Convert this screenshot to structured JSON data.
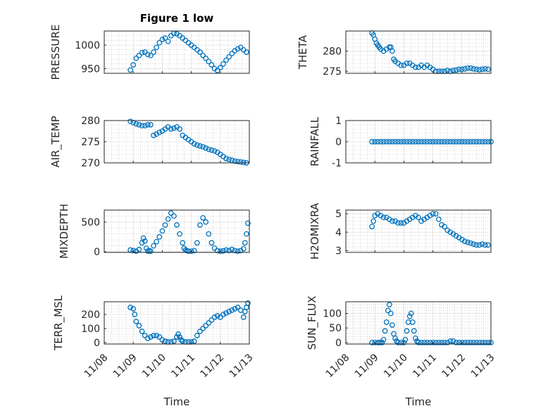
{
  "figure": {
    "title": "Figure 1 low"
  },
  "colors": {
    "marker": "#0072BD",
    "axes": "#262626",
    "grid": "#b8b8b8"
  },
  "chart_data": [
    {
      "type": "scatter",
      "title": "Figure 1 low",
      "xlabel": "",
      "ylabel": "PRESSURE",
      "xlim": [
        0,
        5
      ],
      "ylim": [
        940,
        1030
      ],
      "yticks": [
        950,
        1000
      ],
      "xticks": [],
      "series": [
        {
          "x": [
            0.9,
            1.0,
            1.1,
            1.2,
            1.3,
            1.4,
            1.5,
            1.6,
            1.7,
            1.8,
            1.9,
            2.0,
            2.1,
            2.2,
            2.3,
            2.4,
            2.5,
            2.6,
            2.7,
            2.8,
            2.9,
            3.0,
            3.1,
            3.2,
            3.3,
            3.4,
            3.5,
            3.6,
            3.7,
            3.8,
            3.9,
            4.0,
            4.1,
            4.2,
            4.3,
            4.4,
            4.5,
            4.6,
            4.7,
            4.8,
            4.9
          ],
          "y": [
            947,
            958,
            972,
            978,
            984,
            985,
            980,
            978,
            985,
            995,
            1005,
            1012,
            1015,
            1008,
            1020,
            1025,
            1024,
            1020,
            1015,
            1010,
            1005,
            1000,
            995,
            990,
            985,
            978,
            972,
            965,
            958,
            950,
            946,
            952,
            960,
            968,
            975,
            982,
            988,
            992,
            995,
            990,
            985
          ]
        }
      ]
    },
    {
      "type": "scatter",
      "title": "",
      "xlabel": "",
      "ylabel": "THETA",
      "xlim": [
        0,
        5
      ],
      "ylim": [
        274.5,
        285
      ],
      "yticks": [
        275,
        280
      ],
      "xticks": [],
      "series": [
        {
          "x": [
            0.9,
            0.95,
            1.0,
            1.05,
            1.1,
            1.15,
            1.2,
            1.3,
            1.4,
            1.5,
            1.55,
            1.6,
            1.65,
            1.7,
            1.8,
            1.9,
            2.0,
            2.1,
            2.2,
            2.3,
            2.4,
            2.5,
            2.6,
            2.7,
            2.8,
            2.9,
            3.0,
            3.1,
            3.2,
            3.3,
            3.4,
            3.5,
            3.6,
            3.7,
            3.8,
            3.9,
            4.0,
            4.1,
            4.2,
            4.3,
            4.4,
            4.5,
            4.6,
            4.7,
            4.8,
            4.9
          ],
          "y": [
            284.5,
            284,
            283,
            282,
            281.5,
            281,
            280.5,
            280,
            280.5,
            281,
            281,
            280,
            278,
            277.5,
            277,
            276.5,
            276.5,
            277,
            277,
            276.5,
            276,
            276,
            276.5,
            276,
            276.5,
            276,
            275.5,
            275,
            275,
            275,
            275,
            275.2,
            275,
            275.2,
            275.3,
            275.5,
            275.5,
            275.6,
            275.8,
            275.8,
            275.6,
            275.5,
            275.4,
            275.5,
            275.6,
            275.5
          ]
        }
      ]
    },
    {
      "type": "scatter",
      "title": "",
      "xlabel": "",
      "ylabel": "AIR_TEMP",
      "xlim": [
        0,
        5
      ],
      "ylim": [
        270,
        280
      ],
      "yticks": [
        270,
        275,
        280
      ],
      "xticks": [],
      "series": [
        {
          "x": [
            0.9,
            1.0,
            1.1,
            1.2,
            1.3,
            1.4,
            1.5,
            1.6,
            1.7,
            1.8,
            1.9,
            2.0,
            2.1,
            2.2,
            2.3,
            2.4,
            2.5,
            2.6,
            2.7,
            2.8,
            2.9,
            3.0,
            3.1,
            3.2,
            3.3,
            3.4,
            3.5,
            3.6,
            3.7,
            3.8,
            3.9,
            4.0,
            4.1,
            4.2,
            4.3,
            4.4,
            4.5,
            4.6,
            4.7,
            4.8,
            4.9
          ],
          "y": [
            279.8,
            279.5,
            279.2,
            279,
            278.8,
            278.8,
            279,
            279,
            276.5,
            276.8,
            277.2,
            277.5,
            278,
            278.5,
            278,
            278.2,
            278.5,
            278,
            276.5,
            276,
            275.5,
            275,
            274.5,
            274.2,
            274,
            273.8,
            273.5,
            273.2,
            273,
            272.8,
            272.5,
            272,
            271.5,
            271,
            270.8,
            270.6,
            270.4,
            270.3,
            270.2,
            270.1,
            270
          ]
        }
      ]
    },
    {
      "type": "scatter",
      "title": "",
      "xlabel": "",
      "ylabel": "RAINFALL",
      "xlim": [
        0,
        5
      ],
      "ylim": [
        -1,
        1
      ],
      "yticks": [
        -1,
        0,
        1
      ],
      "xticks": [],
      "series": [
        {
          "x": [
            0.9,
            1.0,
            1.1,
            1.2,
            1.3,
            1.4,
            1.5,
            1.6,
            1.7,
            1.8,
            1.9,
            2.0,
            2.1,
            2.2,
            2.3,
            2.4,
            2.5,
            2.6,
            2.7,
            2.8,
            2.9,
            3.0,
            3.1,
            3.2,
            3.3,
            3.4,
            3.5,
            3.6,
            3.7,
            3.8,
            3.9,
            4.0,
            4.1,
            4.2,
            4.3,
            4.4,
            4.5,
            4.6,
            4.7,
            4.8,
            4.9,
            5.0
          ],
          "y": [
            0,
            0,
            0,
            0,
            0,
            0,
            0,
            0,
            0,
            0,
            0,
            0,
            0,
            0,
            0,
            0,
            0,
            0,
            0,
            0,
            0,
            0,
            0,
            0,
            0,
            0,
            0,
            0,
            0,
            0,
            0,
            0,
            0,
            0,
            0,
            0,
            0,
            0,
            0,
            0,
            0,
            0
          ]
        }
      ]
    },
    {
      "type": "scatter",
      "title": "",
      "xlabel": "",
      "ylabel": "MIXDEPTH",
      "xlim": [
        0,
        5
      ],
      "ylim": [
        -10,
        700
      ],
      "yticks": [
        0,
        500
      ],
      "xticks": [],
      "series": [
        {
          "x": [
            0.9,
            1.0,
            1.1,
            1.2,
            1.3,
            1.35,
            1.4,
            1.45,
            1.5,
            1.55,
            1.6,
            1.7,
            1.8,
            1.9,
            2.0,
            2.1,
            2.2,
            2.3,
            2.4,
            2.5,
            2.6,
            2.7,
            2.75,
            2.8,
            2.85,
            2.9,
            3.0,
            3.1,
            3.2,
            3.3,
            3.4,
            3.5,
            3.6,
            3.7,
            3.8,
            3.9,
            4.0,
            4.1,
            4.2,
            4.3,
            4.4,
            4.5,
            4.6,
            4.7,
            4.8,
            4.85,
            4.9,
            4.95
          ],
          "y": [
            30,
            20,
            10,
            40,
            150,
            230,
            180,
            60,
            10,
            20,
            10,
            100,
            170,
            250,
            350,
            450,
            550,
            650,
            600,
            450,
            300,
            150,
            60,
            30,
            20,
            10,
            10,
            20,
            150,
            450,
            570,
            500,
            300,
            150,
            60,
            20,
            10,
            15,
            30,
            20,
            40,
            20,
            10,
            20,
            50,
            150,
            300,
            480
          ]
        }
      ]
    },
    {
      "type": "scatter",
      "title": "",
      "xlabel": "",
      "ylabel": "H2OMIXRA",
      "xlim": [
        0,
        5
      ],
      "ylim": [
        2.9,
        5.2
      ],
      "yticks": [
        3,
        4,
        5
      ],
      "xticks": [],
      "series": [
        {
          "x": [
            0.9,
            0.95,
            1.0,
            1.1,
            1.2,
            1.3,
            1.4,
            1.5,
            1.6,
            1.7,
            1.8,
            1.9,
            2.0,
            2.1,
            2.2,
            2.3,
            2.4,
            2.5,
            2.6,
            2.7,
            2.8,
            2.9,
            3.0,
            3.1,
            3.2,
            3.3,
            3.4,
            3.5,
            3.6,
            3.7,
            3.8,
            3.9,
            4.0,
            4.1,
            4.2,
            4.3,
            4.4,
            4.5,
            4.6,
            4.7,
            4.8,
            4.9
          ],
          "y": [
            4.3,
            4.6,
            4.9,
            5.0,
            4.9,
            4.8,
            4.8,
            4.7,
            4.6,
            4.6,
            4.5,
            4.5,
            4.5,
            4.6,
            4.7,
            4.8,
            4.9,
            4.8,
            4.6,
            4.7,
            4.8,
            4.9,
            5.0,
            5.0,
            4.7,
            4.4,
            4.3,
            4.1,
            4.0,
            3.9,
            3.8,
            3.7,
            3.6,
            3.5,
            3.45,
            3.4,
            3.35,
            3.3,
            3.3,
            3.35,
            3.3,
            3.3
          ]
        }
      ]
    },
    {
      "type": "scatter",
      "title": "",
      "xlabel": "Time",
      "ylabel": "TERR_MSL",
      "xlim": [
        0,
        5
      ],
      "ylim": [
        -10,
        290
      ],
      "yticks": [
        0,
        100,
        200
      ],
      "xticks": [
        "11/08",
        "11/09",
        "11/10",
        "11/11",
        "11/12",
        "11/13"
      ],
      "series": [
        {
          "x": [
            0.9,
            1.0,
            1.05,
            1.1,
            1.2,
            1.3,
            1.4,
            1.5,
            1.6,
            1.7,
            1.8,
            1.9,
            2.0,
            2.1,
            2.2,
            2.3,
            2.4,
            2.5,
            2.55,
            2.6,
            2.65,
            2.7,
            2.8,
            2.9,
            3.0,
            3.1,
            3.2,
            3.3,
            3.4,
            3.5,
            3.6,
            3.7,
            3.8,
            3.9,
            4.0,
            4.1,
            4.2,
            4.3,
            4.4,
            4.5,
            4.6,
            4.7,
            4.8,
            4.85,
            4.9,
            4.95
          ],
          "y": [
            250,
            240,
            200,
            150,
            120,
            80,
            50,
            30,
            40,
            50,
            50,
            40,
            20,
            10,
            5,
            5,
            10,
            40,
            60,
            40,
            20,
            10,
            5,
            5,
            5,
            10,
            50,
            80,
            100,
            120,
            140,
            160,
            180,
            190,
            180,
            200,
            210,
            220,
            230,
            240,
            250,
            230,
            180,
            220,
            250,
            280
          ]
        }
      ]
    },
    {
      "type": "scatter",
      "title": "",
      "xlabel": "Time",
      "ylabel": "SUN_FLUX",
      "xlim": [
        0,
        5
      ],
      "ylim": [
        -5,
        140
      ],
      "yticks": [
        0,
        50,
        100
      ],
      "xticks": [
        "11/08",
        "11/09",
        "11/10",
        "11/11",
        "11/12",
        "11/13"
      ],
      "series": [
        {
          "x": [
            0.9,
            1.0,
            1.1,
            1.15,
            1.2,
            1.25,
            1.3,
            1.35,
            1.4,
            1.45,
            1.5,
            1.55,
            1.6,
            1.65,
            1.7,
            1.75,
            1.8,
            1.9,
            2.0,
            2.05,
            2.1,
            2.15,
            2.2,
            2.25,
            2.3,
            2.35,
            2.4,
            2.45,
            2.5,
            2.6,
            2.7,
            2.8,
            2.9,
            3.0,
            3.1,
            3.2,
            3.3,
            3.4,
            3.5,
            3.6,
            3.7,
            3.8,
            3.9,
            4.0,
            4.1,
            4.2,
            4.3,
            4.4,
            4.5,
            4.6,
            4.7,
            4.8,
            4.9,
            5.0
          ],
          "y": [
            0,
            0,
            0,
            0,
            0,
            0,
            10,
            40,
            70,
            110,
            130,
            100,
            60,
            30,
            15,
            5,
            0,
            0,
            0,
            10,
            40,
            70,
            90,
            100,
            70,
            40,
            15,
            5,
            0,
            0,
            0,
            0,
            0,
            0,
            0,
            0,
            0,
            0,
            0,
            5,
            5,
            0,
            0,
            0,
            0,
            0,
            0,
            0,
            0,
            0,
            0,
            0,
            0,
            0
          ]
        }
      ]
    }
  ]
}
